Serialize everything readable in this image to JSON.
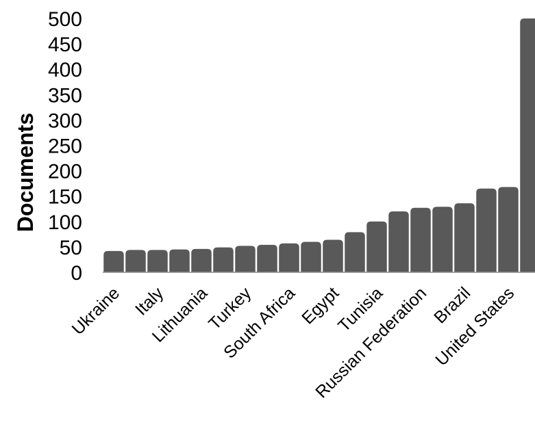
{
  "chart_data": {
    "type": "bar",
    "ylabel": "Documents",
    "ylim": [
      0,
      500
    ],
    "yticks": [
      0,
      50,
      100,
      150,
      200,
      250,
      300,
      350,
      400,
      450,
      500
    ],
    "categories": [
      "Ukraine",
      "",
      "Italy",
      "",
      "Lithuania",
      "",
      "Turkey",
      "",
      "South Africa",
      "",
      "Egypt",
      "",
      "Tunisia",
      "",
      "Russian Federation",
      "",
      "Brazil",
      "",
      "United States",
      ""
    ],
    "values": [
      42,
      44,
      44,
      45,
      46,
      49,
      52,
      54,
      57,
      60,
      64,
      79,
      100,
      120,
      127,
      129,
      136,
      165,
      168,
      500
    ],
    "grid": false,
    "legend": "none",
    "colors": {
      "bar": "#595959",
      "axis": "#8c8c8c"
    }
  }
}
